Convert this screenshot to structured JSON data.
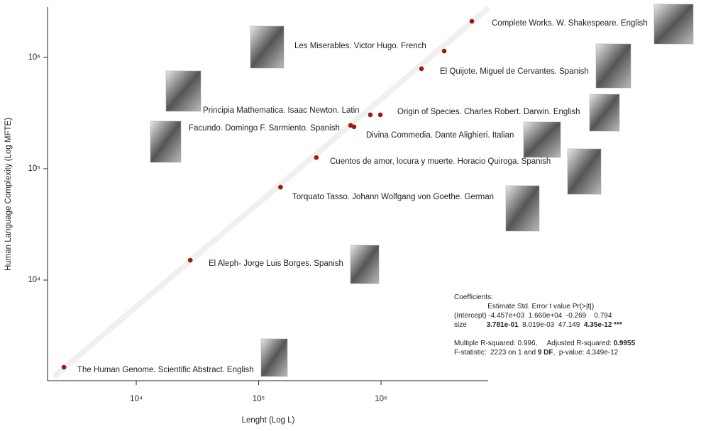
{
  "chart_data": {
    "type": "scatter",
    "x_label": "Lenght (Log L)",
    "y_label": "Human Language Complexity  (Log MFTE)",
    "log_x": true,
    "log_y": true,
    "color": "#9b1c12",
    "xlim": [
      1884,
      7500000
    ],
    "ylim": [
      1248,
      2830000
    ],
    "xticks": [
      {
        "value": 10000,
        "label": "10⁴"
      },
      {
        "value": 100000,
        "label": "10⁵"
      },
      {
        "value": 1000000,
        "label": "10⁶"
      }
    ],
    "yticks": [
      {
        "value": 10000,
        "label": "10⁴"
      },
      {
        "value": 100000,
        "label": "10⁵"
      },
      {
        "value": 1000000,
        "label": "10⁶"
      }
    ],
    "x": [
      2565,
      27600,
      151000,
      296000,
      564000,
      602000,
      818000,
      987000,
      2140000,
      3280000,
      5520000
    ],
    "values": [
      1648,
      15070,
      68200,
      126000,
      245000,
      238000,
      305000,
      305000,
      791000,
      1140000,
      2110000
    ],
    "labels": [
      "The Human Genome. Scientific Abstract. English",
      "El Aleph- Jorge Luis Borges. Spanish",
      "Torquato Tasso. Johann Wolfgang  von Goethe. German",
      "Cuentos de amor, locura y muerte. Horacio Quiroga. Spanish",
      "Facundo. Domingo F. Sarmiento. Spanish",
      "Divina Commedia. Dante Alighieri. Italian",
      "Principia Mathematica. Isaac Newton. Latin",
      "Origin of Species. Charles Robert. Darwin. English",
      "El Quijote. Miguel de Cervantes. Spanish",
      "Les Miserables.  Victor Hugo. French",
      "Complete Works. W. Shakespeare. English"
    ],
    "fit_line": {
      "x": [
        2200,
        7300000
      ],
      "y": [
        1400,
        2700000
      ]
    },
    "stats": [
      {
        "parts": [
          "Coefficients:"
        ],
        "bold": []
      },
      {
        "parts": [
          "                 Estimate Std. Error t value Pr(>|t|)"
        ],
        "bold": []
      },
      {
        "parts": [
          "(Intercept) -4.457e+03  1.660e+04  -0.269    0.794"
        ],
        "bold": []
      },
      {
        "parts": [
          "size          ",
          "3.781e-01",
          "  8.019e-03  47.149  ",
          "4.35e-12 ***"
        ],
        "bold": [
          1,
          3
        ]
      },
      {
        "parts": [
          "Multiple R-squared: 0.996,     Adjusted R-squared: ",
          "0.9955"
        ],
        "bold": [
          1
        ]
      },
      {
        "parts": [
          "F-statistic:  2223 on 1 and ",
          "9 DF",
          ",  p-value: 4.349e-12"
        ],
        "bold": [
          1
        ]
      }
    ]
  }
}
